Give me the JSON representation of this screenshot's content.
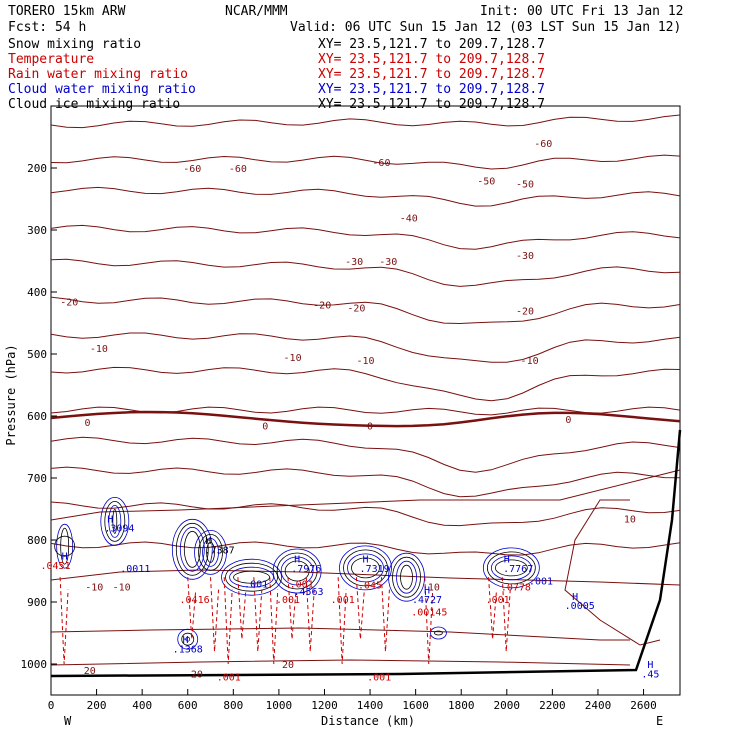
{
  "header": {
    "model": "TORERO  15km ARW",
    "org": "NCAR/MMM",
    "init": "Init: 00 UTC Fri 13 Jan 12",
    "fcst": "Fcst:   54 h",
    "valid": "Valid: 06 UTC Sun 15 Jan 12 (03 LST Sun 15 Jan 12)"
  },
  "legend": [
    {
      "label": "Snow mixing ratio",
      "xy": "XY=  23.5,121.7 to 209.7,128.7",
      "color": "#000000"
    },
    {
      "label": "Temperature",
      "xy": "XY=  23.5,121.7 to 209.7,128.7",
      "color": "#cc0000"
    },
    {
      "label": "Rain water mixing ratio",
      "xy": "XY=  23.5,121.7 to 209.7,128.7",
      "color": "#cc0000"
    },
    {
      "label": "Cloud water mixing ratio",
      "xy": "XY=  23.5,121.7 to 209.7,128.7",
      "color": "#0000cc"
    },
    {
      "label": "Cloud ice mixing ratio",
      "xy": "XY=  23.5,121.7 to 209.7,128.7",
      "color": "#000000"
    }
  ],
  "chart_data": {
    "type": "line",
    "xlabel": "Distance (km)",
    "ylabel": "Pressure (hPa)",
    "xlim": [
      0,
      2760
    ],
    "ylim": [
      1050,
      100
    ],
    "x_ticks": [
      "0",
      "200",
      "400",
      "600",
      "800",
      "1000",
      "1200",
      "1400",
      "1600",
      "1800",
      "2000",
      "2200",
      "2400",
      "2600"
    ],
    "y_ticks": [
      "200",
      "300",
      "400",
      "500",
      "600",
      "700",
      "800",
      "900",
      "1000"
    ],
    "x_ends": {
      "left": "W",
      "right": "E"
    },
    "temperature_labels": [
      {
        "text": "-60",
        "x": 1450,
        "p": 190
      },
      {
        "text": "-60",
        "x": 620,
        "p": 200
      },
      {
        "text": "-60",
        "x": 820,
        "p": 200
      },
      {
        "text": "-60",
        "x": 2160,
        "p": 160
      },
      {
        "text": "-50",
        "x": 1910,
        "p": 220
      },
      {
        "text": "-50",
        "x": 2080,
        "p": 225
      },
      {
        "text": "-40",
        "x": 1570,
        "p": 280
      },
      {
        "text": "-30",
        "x": 1330,
        "p": 350
      },
      {
        "text": "-30",
        "x": 1480,
        "p": 350
      },
      {
        "text": "-30",
        "x": 2080,
        "p": 340
      },
      {
        "text": "-20",
        "x": 80,
        "p": 415
      },
      {
        "text": "-20",
        "x": 1190,
        "p": 420
      },
      {
        "text": "-20",
        "x": 1340,
        "p": 425
      },
      {
        "text": "-20",
        "x": 2080,
        "p": 430
      },
      {
        "text": "-10",
        "x": 210,
        "p": 490
      },
      {
        "text": "-10",
        "x": 1060,
        "p": 505
      },
      {
        "text": "-10",
        "x": 1380,
        "p": 510
      },
      {
        "text": "-10",
        "x": 2100,
        "p": 510
      },
      {
        "text": "0",
        "x": 160,
        "p": 610
      },
      {
        "text": "0",
        "x": 940,
        "p": 615
      },
      {
        "text": "0",
        "x": 1400,
        "p": 615
      },
      {
        "text": "0",
        "x": 2270,
        "p": 605
      },
      {
        "text": "10",
        "x": 2540,
        "p": 765
      },
      {
        "text": "10",
        "x": 1680,
        "p": 875
      },
      {
        "text": "-10",
        "x": 190,
        "p": 875
      },
      {
        "text": "-10",
        "x": 310,
        "p": 875
      },
      {
        "text": "20",
        "x": 170,
        "p": 1010
      },
      {
        "text": "20",
        "x": 1040,
        "p": 1000
      },
      {
        "text": "20",
        "x": 640,
        "p": 1015
      }
    ],
    "cloud_labels": [
      {
        "text": "H",
        "x": 260,
        "p": 765,
        "color": "#0000cc"
      },
      {
        "text": ".3094",
        "x": 300,
        "p": 780,
        "color": "#0000cc"
      },
      {
        "text": "H",
        "x": 690,
        "p": 800,
        "color": "#000000"
      },
      {
        "text": ".7387",
        "x": 740,
        "p": 815,
        "color": "#000000"
      },
      {
        "text": ".0011",
        "x": 370,
        "p": 845,
        "color": "#0000cc"
      },
      {
        "text": ".0416",
        "x": 630,
        "p": 895,
        "color": "#cc0000"
      },
      {
        "text": ".001",
        "x": 900,
        "p": 870,
        "color": "#0000cc"
      },
      {
        "text": "H",
        "x": 1080,
        "p": 830,
        "color": "#0000cc"
      },
      {
        "text": ".7976",
        "x": 1120,
        "p": 845,
        "color": "#0000cc"
      },
      {
        "text": ".4563",
        "x": 1130,
        "p": 882,
        "color": "#0000cc"
      },
      {
        "text": "H",
        "x": 1380,
        "p": 830,
        "color": "#0000cc"
      },
      {
        "text": ".7319",
        "x": 1420,
        "p": 845,
        "color": "#0000cc"
      },
      {
        "text": ".045",
        "x": 1400,
        "p": 872,
        "color": "#cc0000"
      },
      {
        "text": ".001",
        "x": 1040,
        "p": 895,
        "color": "#cc0000"
      },
      {
        "text": ".001",
        "x": 1280,
        "p": 895,
        "color": "#cc0000"
      },
      {
        "text": ".001",
        "x": 1100,
        "p": 870,
        "color": "#cc0000"
      },
      {
        "text": "H",
        "x": 1650,
        "p": 880,
        "color": "#0000cc"
      },
      {
        "text": ".4727",
        "x": 1650,
        "p": 895,
        "color": "#0000cc"
      },
      {
        "text": ".00145",
        "x": 1660,
        "p": 915,
        "color": "#cc0000"
      },
      {
        "text": "H",
        "x": 2000,
        "p": 830,
        "color": "#0000cc"
      },
      {
        "text": ".7767",
        "x": 2050,
        "p": 845,
        "color": "#0000cc"
      },
      {
        "text": ".0778",
        "x": 2040,
        "p": 875,
        "color": "#cc0000"
      },
      {
        "text": ".001",
        "x": 2150,
        "p": 865,
        "color": "#0000cc"
      },
      {
        "text": ".001",
        "x": 1960,
        "p": 895,
        "color": "#cc0000"
      },
      {
        "text": "H",
        "x": 2300,
        "p": 890,
        "color": "#0000cc"
      },
      {
        "text": ".0005",
        "x": 2320,
        "p": 905,
        "color": "#0000cc"
      },
      {
        "text": "H",
        "x": 590,
        "p": 960,
        "color": "#0000cc"
      },
      {
        "text": ".1368",
        "x": 600,
        "p": 975,
        "color": "#0000cc"
      },
      {
        "text": ".001",
        "x": 1440,
        "p": 1020,
        "color": "#cc0000"
      },
      {
        "text": ".001",
        "x": 780,
        "p": 1020,
        "color": "#cc0000"
      },
      {
        "text": "H",
        "x": 2630,
        "p": 1000,
        "color": "#0000cc"
      },
      {
        "text": ".45",
        "x": 2630,
        "p": 1015,
        "color": "#0000cc"
      },
      {
        "text": "H",
        "x": 60,
        "p": 825,
        "color": "#0000cc"
      },
      {
        "text": ".0451",
        "x": 20,
        "p": 840,
        "color": "#cc0000"
      }
    ]
  }
}
